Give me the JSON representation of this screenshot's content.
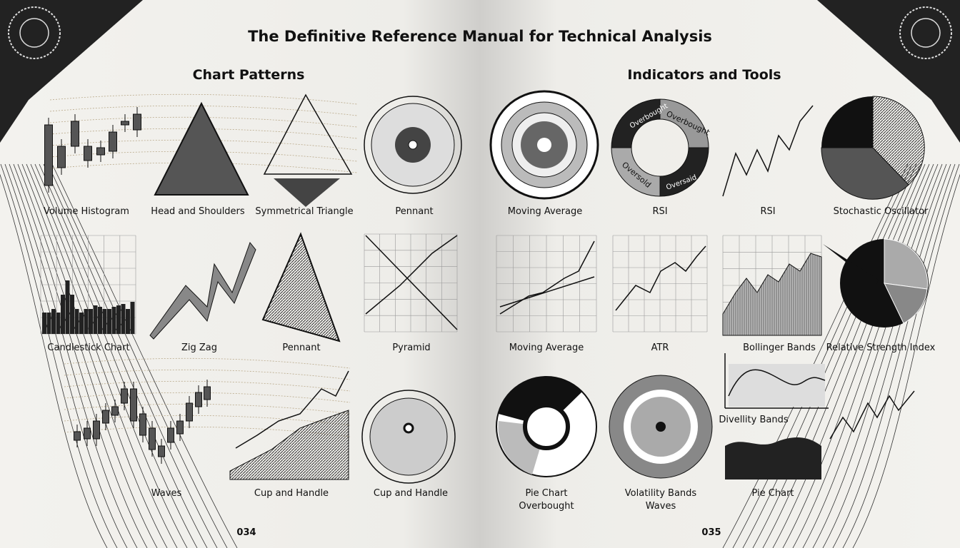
{
  "header": {
    "title": "The Definitive Reference Manual for Technical Analysis"
  },
  "left_page": {
    "heading": "Chart Patterns",
    "items": [
      {
        "label": "Volume Histogram"
      },
      {
        "label": "Head and Shoulders"
      },
      {
        "label": "Symmetrical Triangle"
      },
      {
        "label": "Pennant"
      },
      {
        "label": "Candlestick Chart"
      },
      {
        "label": "Zig Zag"
      },
      {
        "label": "Pennant"
      },
      {
        "label": "Pyramid"
      },
      {
        "label": "Waves"
      },
      {
        "label": "Cup and Handle"
      },
      {
        "label": "Cup and Handle"
      }
    ],
    "page_number": "034"
  },
  "right_page": {
    "heading": "Indicators and Tools",
    "items": [
      {
        "label": "Moving Average"
      },
      {
        "label": "RSI",
        "segment_labels": [
          "Overbought",
          "Overbought",
          "Oversold",
          "Oversaid"
        ]
      },
      {
        "label": "RSI"
      },
      {
        "label": "Stochastic Oscillator"
      },
      {
        "label": "Moving Average"
      },
      {
        "label": "ATR"
      },
      {
        "label": "Bollinger Bands"
      },
      {
        "label": "Relative Strength Index"
      },
      {
        "label": "Pie Chart",
        "sublabel": "Overbought"
      },
      {
        "label": "Volatility Bands",
        "sublabel": "Waves"
      },
      {
        "label": "Divellity Bands"
      },
      {
        "label": "Pie Chart"
      }
    ],
    "page_number": "035"
  }
}
